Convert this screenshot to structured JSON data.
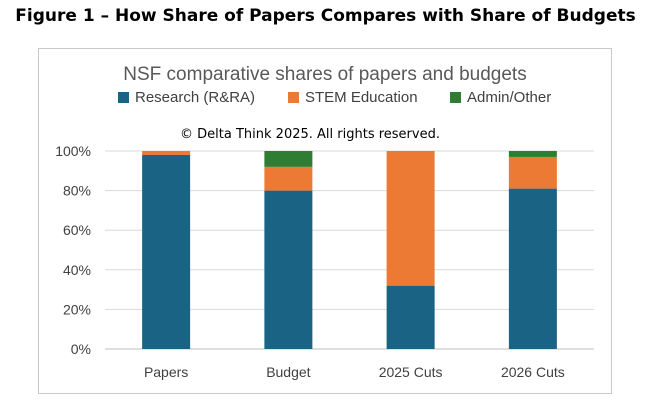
{
  "figure": {
    "heading": "Figure 1 – How Share of Papers Compares with Share of Budgets"
  },
  "chart_data": {
    "type": "bar",
    "stacked": true,
    "title": "NSF comparative shares of papers and budgets",
    "annotation": "© Delta Think 2025. All rights reserved.",
    "categories": [
      "Papers",
      "Budget",
      "2025 Cuts",
      "2026 Cuts"
    ],
    "series": [
      {
        "name": "Research (R&RA)",
        "color": "#1a6385",
        "values": [
          98,
          80,
          32,
          81
        ]
      },
      {
        "name": "STEM Education",
        "color": "#ec7a34",
        "values": [
          2,
          12,
          68,
          16
        ]
      },
      {
        "name": "Admin/Other",
        "color": "#2f7d32",
        "values": [
          0,
          8,
          0,
          3
        ]
      }
    ],
    "ylim": [
      0,
      100
    ],
    "yticks": [
      0,
      20,
      40,
      60,
      80,
      100
    ],
    "ytick_labels": [
      "0%",
      "20%",
      "40%",
      "60%",
      "80%",
      "100%"
    ],
    "xlabel": "",
    "ylabel": "",
    "legend_position": "top",
    "grid": true,
    "gridline_color": "#d9d9d9",
    "axis_color": "#bfbfbf"
  }
}
